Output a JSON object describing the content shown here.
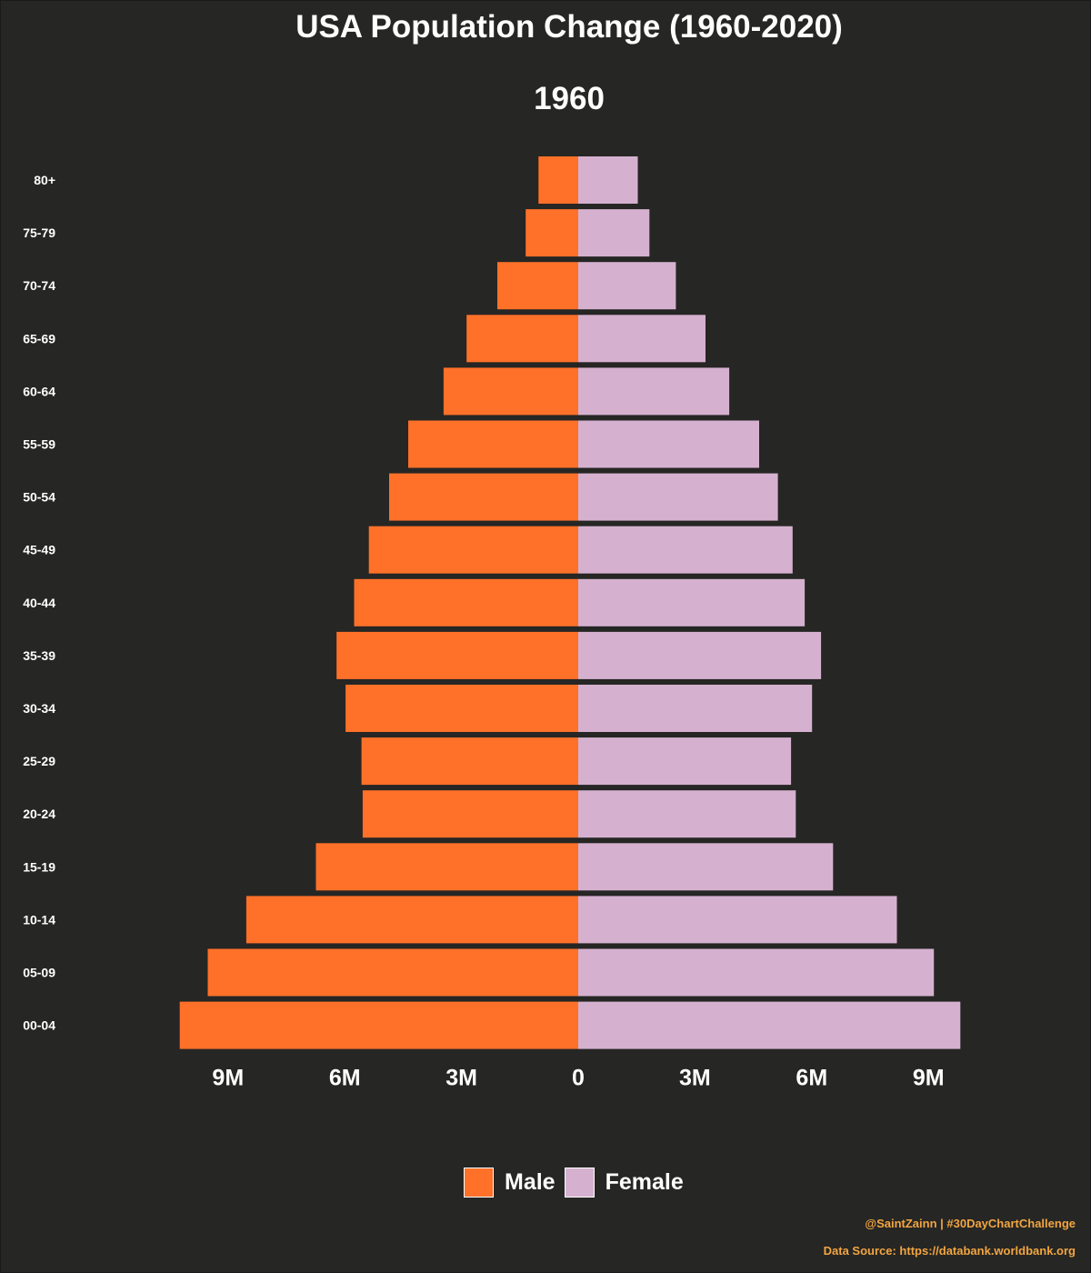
{
  "title": "USA Population Change (1960-2020)",
  "subtitle": "1960",
  "colors": {
    "background": "#262624",
    "male": "#ff7129",
    "female": "#d5b1cf",
    "text": "#ffffff",
    "credit": "#f2a541"
  },
  "legend": {
    "male_label": "Male",
    "female_label": "Female",
    "placement": "bottom-center"
  },
  "credits": {
    "author": "@SaintZainn | #30DayChartChallenge",
    "source": "Data Source: https://databank.worldbank.org"
  },
  "chart_data": {
    "type": "bar",
    "orientation": "horizontal",
    "layout": "population-pyramid",
    "categories": [
      "80+",
      "75-79",
      "70-74",
      "65-69",
      "60-64",
      "55-59",
      "50-54",
      "45-49",
      "40-44",
      "35-39",
      "30-34",
      "25-29",
      "20-24",
      "15-19",
      "10-14",
      "05-09",
      "00-04"
    ],
    "series": [
      {
        "name": "Male",
        "values": [
          1.02,
          1.35,
          2.08,
          2.87,
          3.46,
          4.37,
          4.86,
          5.38,
          5.76,
          6.21,
          5.98,
          5.57,
          5.54,
          6.74,
          8.53,
          9.52,
          10.24
        ]
      },
      {
        "name": "Female",
        "values": [
          1.53,
          1.83,
          2.51,
          3.27,
          3.88,
          4.65,
          5.13,
          5.51,
          5.82,
          6.24,
          6.01,
          5.47,
          5.59,
          6.55,
          8.19,
          9.14,
          9.82
        ]
      }
    ],
    "units": "millions",
    "xlim": [
      -10.5,
      10.5
    ],
    "xticks": [
      -9,
      -6,
      -3,
      0,
      3,
      6,
      9
    ],
    "xtick_labels": [
      "9M",
      "6M",
      "3M",
      "0",
      "3M",
      "6M",
      "9M"
    ],
    "xlabel": "",
    "ylabel": "",
    "grid": false
  }
}
